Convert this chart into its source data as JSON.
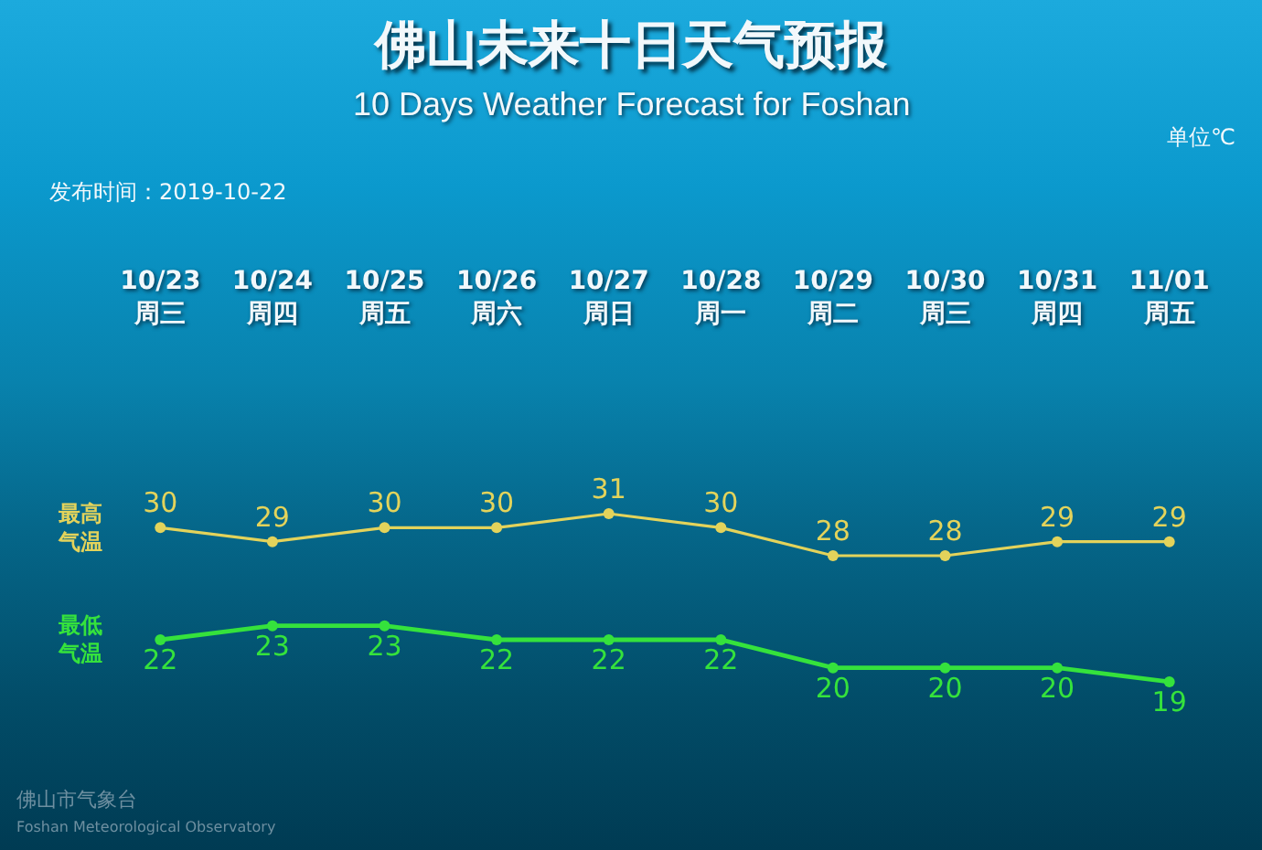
{
  "chart_data": {
    "type": "line",
    "title": "佛山未来十日天气预报",
    "subtitle": "10 Days Weather Forecast for Foshan",
    "annotations": [
      "单位℃",
      "发布时间：2019-10-22",
      "佛山市气象台",
      "Foshan Meteorological Observatory"
    ],
    "categories": [
      "10/23 周三",
      "10/24 周四",
      "10/25 周五",
      "10/26 周六",
      "10/27 周日",
      "10/28 周一",
      "10/29 周二",
      "10/30 周三",
      "10/31 周四",
      "11/01 周五"
    ],
    "series": [
      {
        "name": "最高气温",
        "color": "#e3d35b",
        "values": [
          30,
          29,
          30,
          30,
          31,
          30,
          28,
          28,
          29,
          29
        ]
      },
      {
        "name": "最低气温",
        "color": "#35e23c",
        "values": [
          22,
          23,
          23,
          22,
          22,
          22,
          20,
          20,
          20,
          19
        ]
      }
    ],
    "tick_labels": "x",
    "data_labels": true,
    "marker": "circle",
    "line_style": "solid",
    "legend": "left",
    "grid": false
  }
}
